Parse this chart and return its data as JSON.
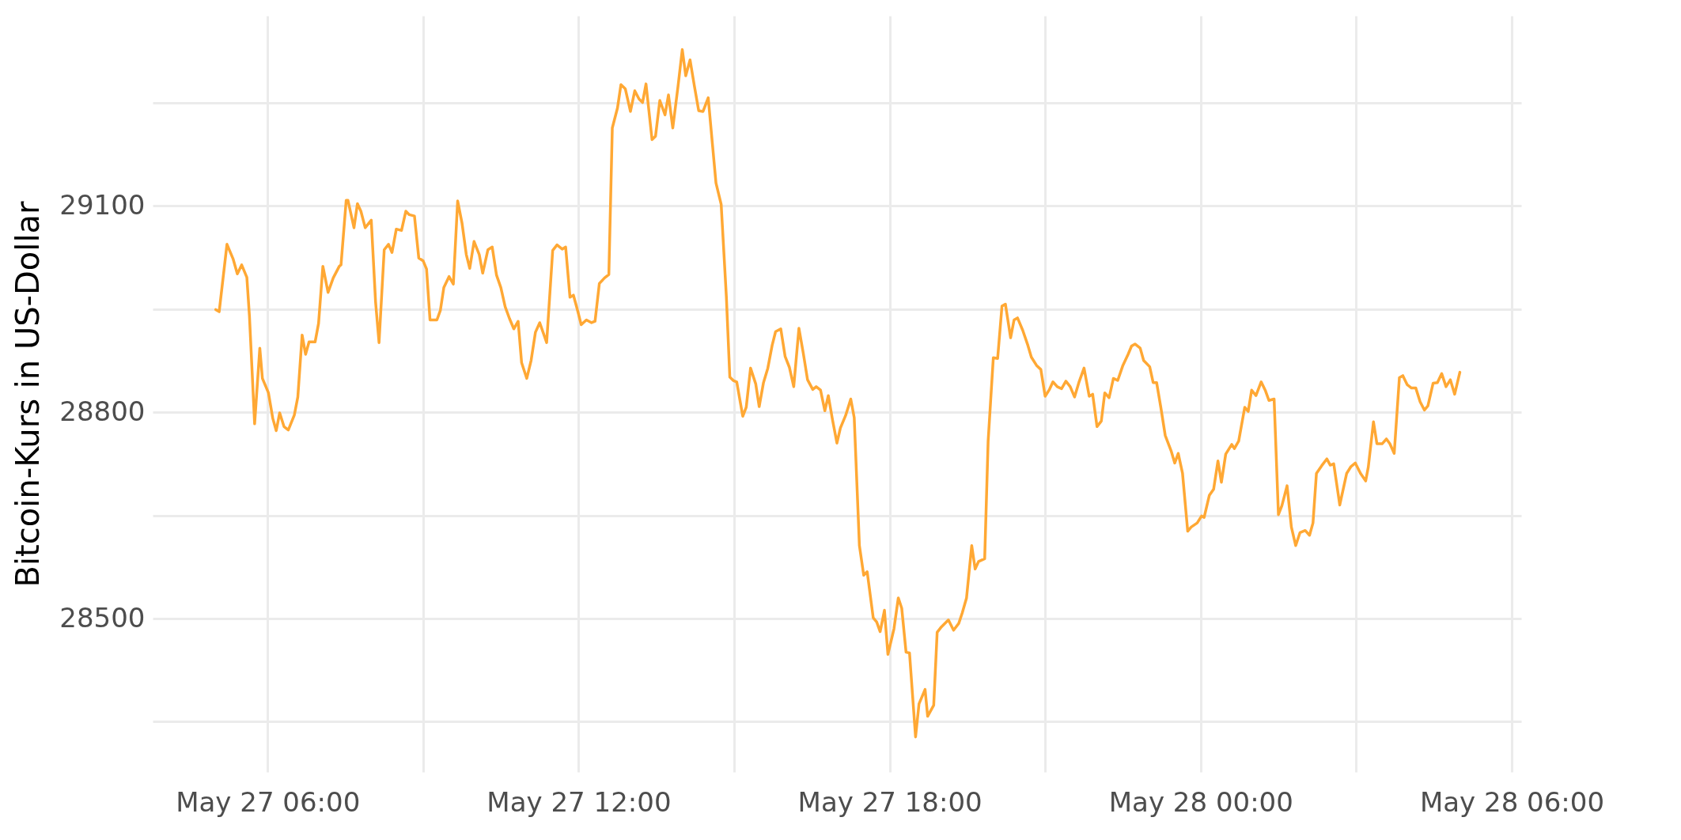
{
  "chart_data": {
    "type": "line",
    "ylabel": "Bitcoin-Kurs in US-Dollar",
    "grid": true,
    "line_style": "solid",
    "xlim": [
      "--05-27T03:47",
      "--05-28T06:11"
    ],
    "ylim": [
      28277,
      29376
    ],
    "xticks": [
      {
        "value": "--05-27T06:00",
        "label": "May 27 06:00"
      },
      {
        "value": "--05-27T09:00",
        "label": null
      },
      {
        "value": "--05-27T12:00",
        "label": "May 27 12:00"
      },
      {
        "value": "--05-27T15:00",
        "label": null
      },
      {
        "value": "--05-27T18:00",
        "label": "May 27 18:00"
      },
      {
        "value": "--05-27T21:00",
        "label": null
      },
      {
        "value": "--05-28T00:00",
        "label": "May 28 00:00"
      },
      {
        "value": "--05-28T03:00",
        "label": null
      },
      {
        "value": "--05-28T06:00",
        "label": "May 28 06:00"
      }
    ],
    "yticks": [
      {
        "value": 28350,
        "label": null
      },
      28500,
      {
        "value": 28650,
        "label": null
      },
      28800,
      {
        "value": 28950,
        "label": null
      },
      29100,
      {
        "value": 29250,
        "label": null
      }
    ],
    "series": [
      {
        "color": "#ffa834",
        "x": [
          "--05-27T05:00",
          "--05-27T05:04",
          "--05-27T05:13",
          "--05-27T05:20",
          "--05-27T05:25",
          "--05-27T05:30",
          "--05-27T05:36",
          "--05-27T05:39",
          "--05-27T05:45",
          "--05-27T05:51",
          "--05-27T05:54",
          "--05-27T06:01",
          "--05-27T06:06",
          "--05-27T06:10",
          "--05-27T06:14",
          "--05-27T06:19",
          "--05-27T06:24",
          "--05-27T06:31",
          "--05-27T06:35",
          "--05-27T06:40",
          "--05-27T06:44",
          "--05-27T06:48",
          "--05-27T06:55",
          "--05-27T06:59",
          "--05-27T07:04",
          "--05-27T07:10",
          "--05-27T07:16",
          "--05-27T07:23",
          "--05-27T07:25",
          "--05-27T07:31",
          "--05-27T07:33",
          "--05-27T07:40",
          "--05-27T07:44",
          "--05-27T07:48",
          "--05-27T07:53",
          "--05-27T08:00",
          "--05-27T08:05",
          "--05-27T08:09",
          "--05-27T08:15",
          "--05-27T08:20",
          "--05-27T08:24",
          "--05-27T08:29",
          "--05-27T08:35",
          "--05-27T08:40",
          "--05-27T08:44",
          "--05-27T08:50",
          "--05-27T08:55",
          "--05-27T09:00",
          "--05-27T09:04",
          "--05-27T09:08",
          "--05-27T09:16",
          "--05-27T09:20",
          "--05-27T09:24",
          "--05-27T09:30",
          "--05-27T09:35",
          "--05-27T09:40",
          "--05-27T09:45",
          "--05-27T09:50",
          "--05-27T09:54",
          "--05-27T09:59",
          "--05-27T10:05",
          "--05-27T10:09",
          "--05-27T10:15",
          "--05-27T10:20",
          "--05-27T10:25",
          "--05-27T10:30",
          "--05-27T10:35",
          "--05-27T10:40",
          "--05-27T10:45",
          "--05-27T10:50",
          "--05-27T10:54",
          "--05-27T11:00",
          "--05-27T11:05",
          "--05-27T11:10",
          "--05-27T11:15",
          "--05-27T11:23",
          "--05-27T11:30",
          "--05-27T11:35",
          "--05-27T11:41",
          "--05-27T11:45",
          "--05-27T11:50",
          "--05-27T11:54",
          "--05-27T11:59",
          "--05-27T12:03",
          "--05-27T12:09",
          "--05-27T12:15",
          "--05-27T12:19",
          "--05-27T12:24",
          "--05-27T12:30",
          "--05-27T12:35",
          "--05-27T12:39",
          "--05-27T12:45",
          "--05-27T12:49",
          "--05-27T12:54",
          "--05-27T13:00",
          "--05-27T13:05",
          "--05-27T13:10",
          "--05-27T13:14",
          "--05-27T13:18",
          "--05-27T13:25",
          "--05-27T13:29",
          "--05-27T13:34",
          "--05-27T13:40",
          "--05-27T13:44",
          "--05-27T13:49",
          "--05-27T13:55",
          "--05-27T14:00",
          "--05-27T14:04",
          "--05-27T14:09",
          "--05-27T14:14",
          "--05-27T14:19",
          "--05-27T14:24",
          "--05-27T14:30",
          "--05-27T14:35",
          "--05-27T14:39",
          "--05-27T14:45",
          "--05-27T14:51",
          "--05-27T14:55",
          "--05-27T14:59",
          "--05-27T15:03",
          "--05-27T15:10",
          "--05-27T15:14",
          "--05-27T15:19",
          "--05-27T15:25",
          "--05-27T15:29",
          "--05-27T15:34",
          "--05-27T15:39",
          "--05-27T15:44",
          "--05-27T15:48",
          "--05-27T15:54",
          "--05-27T15:59",
          "--05-27T16:04",
          "--05-27T16:09",
          "--05-27T16:15",
          "--05-27T16:20",
          "--05-27T16:25",
          "--05-27T16:31",
          "--05-27T16:35",
          "--05-27T16:40",
          "--05-27T16:45",
          "--05-27T16:49",
          "--05-27T16:54",
          "--05-27T16:59",
          "--05-27T17:03",
          "--05-27T17:09",
          "--05-27T17:15",
          "--05-27T17:19",
          "--05-27T17:25",
          "--05-27T17:30",
          "--05-27T17:34",
          "--05-27T17:41",
          "--05-27T17:45",
          "--05-27T17:49",
          "--05-27T17:54",
          "--05-27T17:58",
          "--05-27T18:05",
          "--05-27T18:10",
          "--05-27T18:14",
          "--05-27T18:19",
          "--05-27T18:23",
          "--05-27T18:30",
          "--05-27T18:34",
          "--05-27T18:41",
          "--05-27T18:44",
          "--05-27T18:51",
          "--05-27T18:55",
          "--05-27T19:00",
          "--05-27T19:08",
          "--05-27T19:14",
          "--05-27T19:20",
          "--05-27T19:24",
          "--05-27T19:29",
          "--05-27T19:35",
          "--05-27T19:39",
          "--05-27T19:43",
          "--05-27T19:50",
          "--05-27T19:54",
          "--05-27T20:00",
          "--05-27T20:05",
          "--05-27T20:10",
          "--05-27T20:14",
          "--05-27T20:20",
          "--05-27T20:24",
          "--05-27T20:28",
          "--05-27T20:34",
          "--05-27T20:40",
          "--05-27T20:44",
          "--05-27T20:50",
          "--05-27T20:55",
          "--05-27T21:00",
          "--05-27T21:05",
          "--05-27T21:09",
          "--05-27T21:14",
          "--05-27T21:19",
          "--05-27T21:24",
          "--05-27T21:29",
          "--05-27T21:34",
          "--05-27T21:39",
          "--05-27T21:45",
          "--05-27T21:51",
          "--05-27T21:55",
          "--05-27T22:00",
          "--05-27T22:05",
          "--05-27T22:09",
          "--05-27T22:14",
          "--05-27T22:19",
          "--05-27T22:24",
          "--05-27T22:30",
          "--05-27T22:36",
          "--05-27T22:40",
          "--05-27T22:44",
          "--05-27T22:50",
          "--05-27T22:54",
          "--05-27T23:01",
          "--05-27T23:05",
          "--05-27T23:09",
          "--05-27T23:14",
          "--05-27T23:19",
          "--05-27T23:26",
          "--05-27T23:30",
          "--05-27T23:34",
          "--05-27T23:39",
          "--05-27T23:45",
          "--05-27T23:49",
          "--05-27T23:56",
          "--05-28T00:01",
          "--05-28T00:04",
          "--05-28T00:10",
          "--05-28T00:15",
          "--05-28T00:20",
          "--05-28T00:24",
          "--05-28T00:29",
          "--05-28T00:36",
          "--05-28T00:39",
          "--05-28T00:44",
          "--05-28T00:51",
          "--05-28T00:55",
          "--05-28T00:59",
          "--05-28T01:04",
          "--05-28T01:10",
          "--05-28T01:15",
          "--05-28T01:19",
          "--05-28T01:25",
          "--05-28T01:30",
          "--05-28T01:34",
          "--05-28T01:40",
          "--05-28T01:45",
          "--05-28T01:50",
          "--05-28T01:55",
          "--05-28T02:01",
          "--05-28T02:06",
          "--05-28T02:10",
          "--05-28T02:14",
          "--05-28T02:20",
          "--05-28T02:26",
          "--05-28T02:30",
          "--05-28T02:34",
          "--05-28T02:41",
          "--05-28T02:49",
          "--05-28T02:54",
          "--05-28T02:59",
          "--05-28T03:05",
          "--05-28T03:11",
          "--05-28T03:14",
          "--05-28T03:20",
          "--05-28T03:24",
          "--05-28T03:30",
          "--05-28T03:35",
          "--05-28T03:39",
          "--05-28T03:44",
          "--05-28T03:50",
          "--05-28T03:54",
          "--05-28T03:59",
          "--05-28T04:04",
          "--05-28T04:09",
          "--05-28T04:14",
          "--05-28T04:19",
          "--05-28T04:23",
          "--05-28T04:29",
          "--05-28T04:34",
          "--05-28T04:39",
          "--05-28T04:44",
          "--05-28T04:49",
          "--05-28T04:54",
          "--05-28T05:00"
        ],
        "values": [
          28949,
          28946,
          29044,
          29023,
          29001,
          29014,
          28996,
          28940,
          28783,
          28893,
          28849,
          28828,
          28791,
          28773,
          28799,
          28779,
          28774,
          28796,
          28822,
          28912,
          28884,
          28902,
          28902,
          28929,
          29012,
          28974,
          28995,
          29012,
          29014,
          29108,
          29108,
          29068,
          29103,
          29092,
          29068,
          29079,
          28960,
          28901,
          29036,
          29044,
          29032,
          29066,
          29064,
          29092,
          29087,
          29085,
          29024,
          29020,
          29008,
          28934,
          28934,
          28948,
          28981,
          28997,
          28986,
          29107,
          29075,
          29029,
          29009,
          29048,
          29029,
          29002,
          29036,
          29040,
          28999,
          28981,
          28953,
          28936,
          28921,
          28932,
          28872,
          28849,
          28875,
          28916,
          28930,
          28901,
          29035,
          29043,
          29037,
          29040,
          28967,
          28970,
          28947,
          28927,
          28934,
          28930,
          28932,
          28987,
          28995,
          29000,
          29213,
          29242,
          29276,
          29270,
          29237,
          29267,
          29255,
          29250,
          29277,
          29196,
          29201,
          29253,
          29232,
          29261,
          29213,
          29273,
          29327,
          29289,
          29312,
          29274,
          29238,
          29237,
          29257,
          29188,
          29133,
          29102,
          28968,
          28851,
          28846,
          28844,
          28794,
          28807,
          28864,
          28841,
          28808,
          28843,
          28864,
          28897,
          28917,
          28921,
          28881,
          28865,
          28837,
          28922,
          28886,
          28847,
          28833,
          28837,
          28832,
          28802,
          28824,
          28788,
          28755,
          28777,
          28795,
          28819,
          28792,
          28606,
          28563,
          28568,
          28501,
          28495,
          28481,
          28512,
          28448,
          28485,
          28530,
          28515,
          28451,
          28450,
          28328,
          28376,
          28397,
          28358,
          28374,
          28480,
          28488,
          28498,
          28483,
          28493,
          28508,
          28530,
          28606,
          28572,
          28583,
          28587,
          28758,
          28879,
          28878,
          28954,
          28957,
          28908,
          28934,
          28937,
          28919,
          28897,
          28880,
          28868,
          28862,
          28823,
          28833,
          28844,
          28837,
          28834,
          28845,
          28837,
          28822,
          28843,
          28864,
          28823,
          28826,
          28779,
          28787,
          28828,
          28821,
          28849,
          28846,
          28868,
          28884,
          28896,
          28899,
          28893,
          28875,
          28866,
          28843,
          28843,
          28806,
          28766,
          28743,
          28726,
          28740,
          28711,
          28627,
          28633,
          28639,
          28649,
          28647,
          28679,
          28688,
          28729,
          28698,
          28739,
          28753,
          28747,
          28758,
          28807,
          28801,
          28832,
          28824,
          28844,
          28831,
          28817,
          28819,
          28651,
          28664,
          28693,
          28633,
          28606,
          28625,
          28628,
          28621,
          28639,
          28711,
          28722,
          28732,
          28723,
          28725,
          28665,
          28711,
          28721,
          28726,
          28711,
          28700,
          28720,
          28786,
          28754,
          28754,
          28761,
          28754,
          28740,
          28850,
          28853,
          28840,
          28835,
          28835,
          28815,
          28803,
          28809,
          28842,
          28843,
          28856,
          28837,
          28847,
          28826,
          28858
        ]
      }
    ]
  }
}
